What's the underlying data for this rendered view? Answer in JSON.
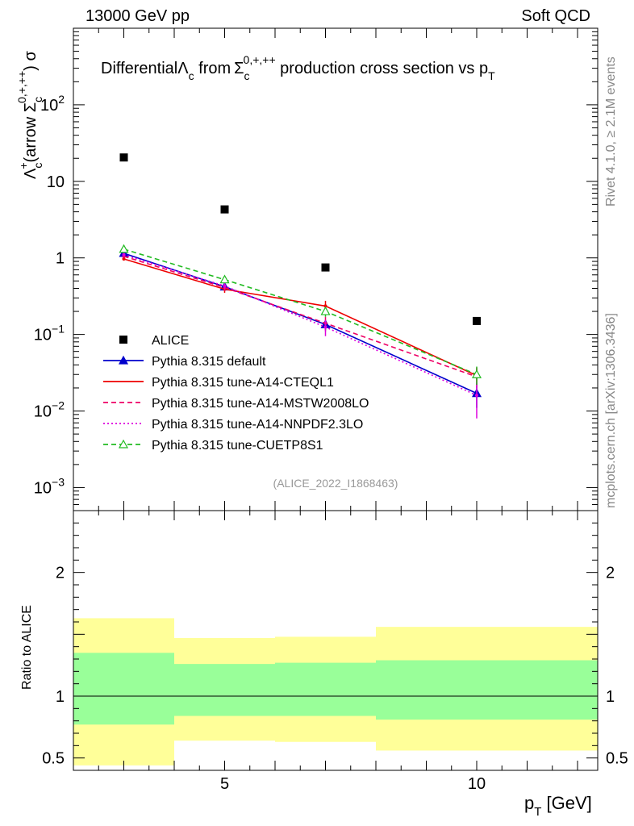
{
  "header": {
    "left": "13000 GeV pp",
    "right": "Soft QCD"
  },
  "side_labels": {
    "rivet": "Rivet 4.1.0, ≥ 2.1M events",
    "mcplots": "mcplots.cern.ch [arXiv:1306.3436]"
  },
  "chart_data": {
    "type": "scatter",
    "title": "Differential Λc from Σc0,+,++ production cross section vs pT",
    "title_parts": {
      "a": "Differential",
      "b": "Λ",
      "c": "c",
      "d": " from",
      "e": "Σ",
      "f": "c",
      "g": "0,+,++",
      "h": " production cross section vs p",
      "i": "T"
    },
    "ylabel": "Λc+(arrow Σc0,+,++) σ",
    "ylabel_parts": {
      "a": "Λ",
      "b": "c",
      "c": "+",
      "d": "(arrow Σ",
      "e": "c",
      "f": "0,+,++",
      "g": ") σ"
    },
    "xlabel": "pT [GeV]",
    "xlabel_parts": {
      "a": "p",
      "b": "T",
      "c": " [GeV]"
    },
    "ratio_ylabel": "Ratio to ALICE",
    "watermark": "(ALICE_2022_I1868463)",
    "xlim": [
      2,
      12.4
    ],
    "ylim_log": [
      0.0005,
      1000
    ],
    "ratio_ylim": [
      0.4,
      2.5
    ],
    "x_ticks": [
      {
        "v": 5,
        "label": "5"
      },
      {
        "v": 10,
        "label": "10"
      }
    ],
    "y_ticks": [
      {
        "v": 0.001,
        "label": "10",
        "sup": "−3"
      },
      {
        "v": 0.01,
        "label": "10",
        "sup": "−2"
      },
      {
        "v": 0.1,
        "label": "10",
        "sup": "−1"
      },
      {
        "v": 1,
        "label": "1",
        "sup": ""
      },
      {
        "v": 10,
        "label": "10",
        "sup": ""
      },
      {
        "v": 100,
        "label": "10",
        "sup": "2"
      }
    ],
    "ratio_ticks": [
      {
        "v": 0.5,
        "label": "0.5"
      },
      {
        "v": 1,
        "label": "1"
      },
      {
        "v": 2,
        "label": "2"
      }
    ],
    "bins": [
      [
        2,
        4
      ],
      [
        4,
        6
      ],
      [
        6,
        8
      ],
      [
        8,
        12
      ]
    ],
    "data": {
      "name": "ALICE",
      "x": [
        3,
        5,
        7,
        10
      ],
      "y": [
        20.5,
        4.3,
        0.75,
        0.15
      ]
    },
    "bands": [
      {
        "xlo": 2,
        "xhi": 4,
        "inner": [
          0.77,
          1.35
        ],
        "outer": [
          0.44,
          1.63
        ]
      },
      {
        "xlo": 4,
        "xhi": 6,
        "inner": [
          0.84,
          1.26
        ],
        "outer": [
          0.64,
          1.47
        ]
      },
      {
        "xlo": 6,
        "xhi": 8,
        "inner": [
          0.84,
          1.27
        ],
        "outer": [
          0.63,
          1.48
        ]
      },
      {
        "xlo": 8,
        "xhi": 12.4,
        "inner": [
          0.81,
          1.29
        ],
        "outer": [
          0.56,
          1.56
        ]
      }
    ],
    "series": [
      {
        "name": "Pythia 8.315 default",
        "color": "#0000cc",
        "dash": "",
        "marker": "triangle-filled",
        "x": [
          3,
          5,
          7,
          10
        ],
        "y": [
          1.15,
          0.42,
          0.135,
          0.017
        ],
        "err": [
          0.05,
          0.03,
          0.02,
          0.006
        ]
      },
      {
        "name": "Pythia 8.315 tune-A14-CTEQL1",
        "color": "#ee0000",
        "dash": "",
        "marker": "none",
        "x": [
          3,
          5,
          7,
          10
        ],
        "y": [
          0.97,
          0.39,
          0.235,
          0.029
        ],
        "err": [
          0.05,
          0.04,
          0.04,
          0.008
        ]
      },
      {
        "name": "Pythia 8.315 tune-A14-MSTW2008LO",
        "color": "#ee0066",
        "dash": "6,4",
        "marker": "none",
        "x": [
          3,
          5,
          7,
          10
        ],
        "y": [
          1.05,
          0.41,
          0.14,
          0.028
        ],
        "err": [
          0.05,
          0.04,
          0.03,
          0.008
        ]
      },
      {
        "name": "Pythia 8.315 tune-A14-NNPDF2.3LO",
        "color": "#dd00dd",
        "dash": "2,3",
        "marker": "none",
        "x": [
          3,
          5,
          7,
          10
        ],
        "y": [
          1.1,
          0.43,
          0.125,
          0.016
        ],
        "err": [
          0.05,
          0.04,
          0.03,
          0.008
        ]
      },
      {
        "name": "Pythia 8.315 tune-CUETP8S1",
        "color": "#22bb22",
        "dash": "6,4",
        "marker": "triangle-open",
        "x": [
          3,
          5,
          7,
          10
        ],
        "y": [
          1.3,
          0.52,
          0.2,
          0.03
        ],
        "err": [
          0.06,
          0.04,
          0.03,
          0.008
        ]
      }
    ]
  }
}
